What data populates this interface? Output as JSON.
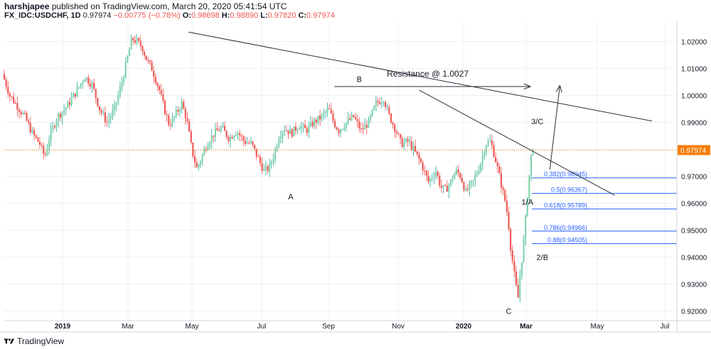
{
  "header": {
    "author": "harshjapee",
    "published_text": "published on TradingView.com, March 20, 2020 05:41:54 UTC",
    "symbol": "FX_IDC:USDCHF, 1D",
    "last": "0.97974",
    "change": "−0.00775 (−0.78%)",
    "open_label": "O:",
    "open": "0.98698",
    "high_label": "H:",
    "high": "0.98890",
    "low_label": "L:",
    "low": "0.97820",
    "close_label": "C:",
    "close": "0.97974"
  },
  "footer": {
    "brand": "TradingView"
  },
  "colors": {
    "up": "#26a69a",
    "up_light": "#7dd3a8",
    "down": "#ef5350",
    "fib_line": "#2962ff",
    "price_line": "#f57c00",
    "trend_line": "#2a2e39",
    "grid": "#eef0f3",
    "price_badge": "#f57c00"
  },
  "chart_data": {
    "type": "candlestick",
    "symbol": "FX_IDC:USDCHF",
    "interval": "1D",
    "ylim": [
      0.9165,
      1.0275
    ],
    "y_ticks": [
      "1.02000",
      "1.01000",
      "1.00000",
      "0.99000",
      "0.98000",
      "0.97000",
      "0.96000",
      "0.95000",
      "0.94000",
      "0.93000",
      "0.92000"
    ],
    "y_tick_values": [
      1.02,
      1.01,
      1.0,
      0.99,
      0.98,
      0.97,
      0.96,
      0.95,
      0.94,
      0.93,
      0.92
    ],
    "x_ticks": [
      "2019",
      "Mar",
      "May",
      "Jul",
      "Sep",
      "Nov",
      "2020",
      "Mar",
      "May",
      "Jul"
    ],
    "x_tick_bold": [
      true,
      false,
      false,
      false,
      false,
      false,
      true,
      true,
      false,
      false
    ],
    "current_price": 0.97974,
    "current_price_label": "0.97974",
    "price_path": [
      [
        0,
        1.008
      ],
      [
        6,
        1.0
      ],
      [
        12,
        0.996
      ],
      [
        18,
        0.992
      ],
      [
        24,
        0.986
      ],
      [
        30,
        0.982
      ],
      [
        34,
        0.977
      ],
      [
        38,
        0.985
      ],
      [
        44,
        0.992
      ],
      [
        52,
        0.996
      ],
      [
        60,
        1.002
      ],
      [
        66,
        1.007
      ],
      [
        72,
        1.004
      ],
      [
        78,
        0.995
      ],
      [
        84,
        0.99
      ],
      [
        90,
        0.995
      ],
      [
        96,
        1.005
      ],
      [
        100,
        1.013
      ],
      [
        104,
        1.021
      ],
      [
        108,
        1.02
      ],
      [
        112,
        1.018
      ],
      [
        116,
        1.013
      ],
      [
        120,
        1.01
      ],
      [
        126,
        1.002
      ],
      [
        130,
        0.995
      ],
      [
        134,
        0.989
      ],
      [
        138,
        0.992
      ],
      [
        144,
        0.997
      ],
      [
        148,
        0.991
      ],
      [
        152,
        0.98
      ],
      [
        156,
        0.973
      ],
      [
        160,
        0.977
      ],
      [
        164,
        0.982
      ],
      [
        170,
        0.986
      ],
      [
        176,
        0.988
      ],
      [
        182,
        0.984
      ],
      [
        188,
        0.987
      ],
      [
        194,
        0.983
      ],
      [
        200,
        0.982
      ],
      [
        206,
        0.976
      ],
      [
        210,
        0.972
      ],
      [
        214,
        0.973
      ],
      [
        218,
        0.978
      ],
      [
        222,
        0.985
      ],
      [
        226,
        0.988
      ],
      [
        232,
        0.986
      ],
      [
        238,
        0.989
      ],
      [
        244,
        0.987
      ],
      [
        250,
        0.99
      ],
      [
        256,
        0.992
      ],
      [
        262,
        0.995
      ],
      [
        266,
        0.99
      ],
      [
        270,
        0.987
      ],
      [
        276,
        0.99
      ],
      [
        282,
        0.992
      ],
      [
        288,
        0.987
      ],
      [
        294,
        0.99
      ],
      [
        300,
        0.997
      ],
      [
        306,
        0.999
      ],
      [
        310,
        0.993
      ],
      [
        316,
        0.987
      ],
      [
        320,
        0.982
      ],
      [
        326,
        0.983
      ],
      [
        330,
        0.98
      ],
      [
        336,
        0.975
      ],
      [
        342,
        0.968
      ],
      [
        348,
        0.972
      ],
      [
        352,
        0.966
      ],
      [
        356,
        0.965
      ],
      [
        360,
        0.968
      ],
      [
        364,
        0.972
      ],
      [
        368,
        0.97
      ],
      [
        372,
        0.964
      ],
      [
        378,
        0.968
      ],
      [
        384,
        0.975
      ],
      [
        388,
        0.982
      ],
      [
        392,
        0.983
      ],
      [
        396,
        0.976
      ],
      [
        400,
        0.968
      ],
      [
        404,
        0.96
      ],
      [
        406,
        0.954
      ],
      [
        408,
        0.944
      ],
      [
        410,
        0.937
      ],
      [
        412,
        0.93
      ],
      [
        414,
        0.925
      ],
      [
        416,
        0.936
      ],
      [
        418,
        0.943
      ],
      [
        420,
        0.954
      ],
      [
        422,
        0.966
      ],
      [
        424,
        0.975
      ],
      [
        425,
        0.98
      ]
    ],
    "wave_labels": [
      {
        "text": "A",
        "day": 230,
        "price": 0.9615
      },
      {
        "text": "B",
        "day": 285,
        "price": 1.005
      },
      {
        "text": "C",
        "day": 405,
        "price": 0.919
      },
      {
        "text": "1/A",
        "day": 420,
        "price": 0.9595
      },
      {
        "text": "2/B",
        "day": 432,
        "price": 0.939
      },
      {
        "text": "3/C",
        "day": 428,
        "price": 0.9893
      }
    ],
    "fib_levels": [
      {
        "label": "0.382(0.96945)",
        "value": 0.96945
      },
      {
        "label": "0.5(0.96367)",
        "value": 0.96367
      },
      {
        "label": "0.618(0.95789)",
        "value": 0.95789
      },
      {
        "label": "0.786(0.94966)",
        "value": 0.94966
      },
      {
        "label": "0.88(0.94505)",
        "value": 0.94505
      }
    ],
    "annotations": [
      {
        "text": "Resistance @ 1.0027",
        "day": 340,
        "price": 1.007
      }
    ],
    "trend_lines": [
      {
        "from": [
          148,
          1.0235
        ],
        "to": [
          520,
          0.9905
        ]
      },
      {
        "from": [
          333,
          1.002
        ],
        "to": [
          490,
          0.963
        ]
      },
      {
        "from": [
          265,
          1.0033
        ],
        "to": [
          422,
          1.0033
        ],
        "arrow": true
      },
      {
        "from": [
          438,
          0.9725
        ],
        "to": [
          446,
          1.0035
        ],
        "arrow": true
      }
    ],
    "day_range": [
      0,
      540
    ]
  }
}
